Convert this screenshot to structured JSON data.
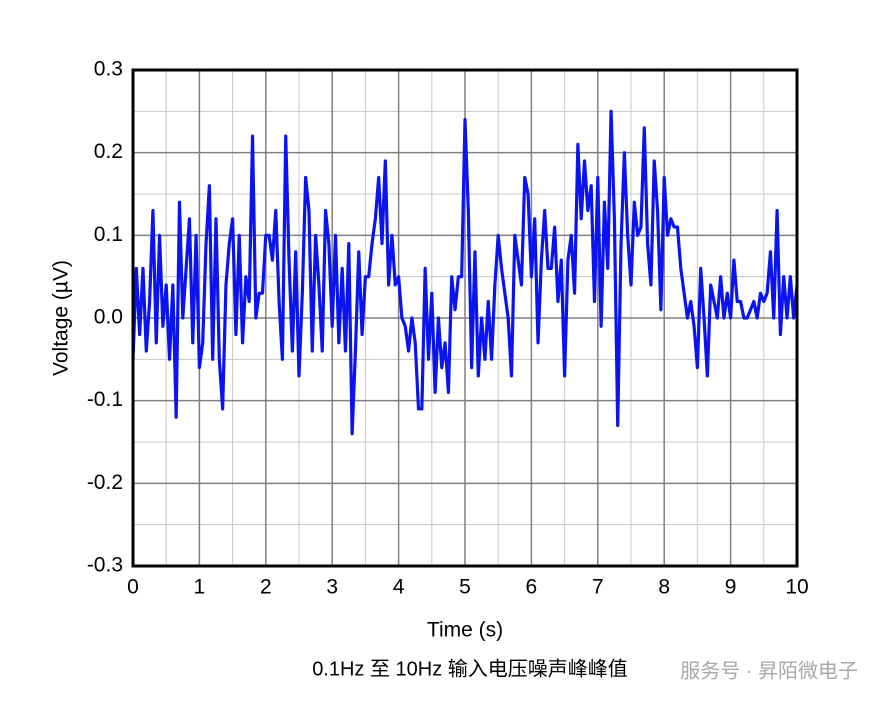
{
  "chart_data": {
    "type": "line",
    "caption": "0.1Hz 至 10Hz 输入电压噪声峰峰值",
    "watermark": "服务号 · 昇陌微电子",
    "x_label": "Time (s)",
    "y_label": "Voltage (µV)",
    "xlim": [
      0,
      10
    ],
    "ylim": [
      -0.3,
      0.3
    ],
    "xticks": [
      0,
      1,
      2,
      3,
      4,
      5,
      6,
      7,
      8,
      9,
      10
    ],
    "yticks": [
      -0.3,
      -0.2,
      -0.1,
      {
        "value": 0,
        "label": "0.0"
      },
      0.1,
      0.2,
      0.3
    ],
    "grid": true,
    "minor_grid": true,
    "x": [
      0,
      0.05,
      0.1,
      0.15,
      0.2,
      0.25,
      0.3,
      0.35,
      0.4,
      0.45,
      0.5,
      0.55,
      0.6,
      0.65,
      0.7,
      0.75,
      0.8,
      0.85,
      0.9,
      0.95,
      1,
      1.05,
      1.1,
      1.15,
      1.2,
      1.25,
      1.3,
      1.35,
      1.4,
      1.45,
      1.5,
      1.55,
      1.6,
      1.65,
      1.7,
      1.75,
      1.8,
      1.85,
      1.9,
      1.95,
      2,
      2.05,
      2.1,
      2.15,
      2.2,
      2.25,
      2.3,
      2.35,
      2.4,
      2.45,
      2.5,
      2.55,
      2.6,
      2.65,
      2.7,
      2.75,
      2.8,
      2.85,
      2.9,
      2.95,
      3,
      3.05,
      3.1,
      3.15,
      3.2,
      3.25,
      3.3,
      3.35,
      3.4,
      3.45,
      3.5,
      3.55,
      3.6,
      3.65,
      3.7,
      3.75,
      3.8,
      3.85,
      3.9,
      3.95,
      4,
      4.05,
      4.1,
      4.15,
      4.2,
      4.25,
      4.3,
      4.35,
      4.4,
      4.45,
      4.5,
      4.55,
      4.6,
      4.65,
      4.7,
      4.75,
      4.8,
      4.85,
      4.9,
      4.95,
      5,
      5.05,
      5.1,
      5.15,
      5.2,
      5.25,
      5.3,
      5.35,
      5.4,
      5.45,
      5.5,
      5.55,
      5.6,
      5.65,
      5.7,
      5.75,
      5.8,
      5.85,
      5.9,
      5.95,
      6,
      6.05,
      6.1,
      6.15,
      6.2,
      6.25,
      6.3,
      6.35,
      6.4,
      6.45,
      6.5,
      6.55,
      6.6,
      6.65,
      6.7,
      6.75,
      6.8,
      6.85,
      6.9,
      6.95,
      7,
      7.05,
      7.1,
      7.15,
      7.2,
      7.25,
      7.3,
      7.35,
      7.4,
      7.45,
      7.5,
      7.55,
      7.6,
      7.65,
      7.7,
      7.75,
      7.8,
      7.85,
      7.9,
      7.95,
      8,
      8.05,
      8.1,
      8.15,
      8.2,
      8.25,
      8.3,
      8.35,
      8.4,
      8.45,
      8.5,
      8.55,
      8.6,
      8.65,
      8.7,
      8.75,
      8.8,
      8.85,
      8.9,
      8.95,
      9,
      9.05,
      9.1,
      9.15,
      9.2,
      9.25,
      9.3,
      9.35,
      9.4,
      9.45,
      9.5,
      9.55,
      9.6,
      9.65,
      9.7,
      9.75,
      9.8,
      9.85,
      9.9,
      9.95,
      10
    ],
    "series": [
      {
        "color": "#0a14f0",
        "values": [
          -0.05,
          0.06,
          -0.02,
          0.06,
          -0.04,
          0.02,
          0.13,
          -0.03,
          0.1,
          -0.01,
          0.04,
          -0.05,
          0.04,
          -0.12,
          0.14,
          0.0,
          0.06,
          0.12,
          -0.03,
          0.1,
          -0.06,
          -0.03,
          0.09,
          0.16,
          -0.05,
          0.12,
          -0.05,
          -0.11,
          0.04,
          0.09,
          0.12,
          -0.02,
          0.1,
          -0.03,
          0.05,
          0.02,
          0.22,
          0.0,
          0.03,
          0.03,
          0.1,
          0.1,
          0.07,
          0.13,
          0.02,
          -0.05,
          0.22,
          0.07,
          -0.04,
          0.08,
          -0.07,
          0.03,
          0.17,
          0.13,
          -0.04,
          0.1,
          0.04,
          -0.04,
          0.13,
          0.09,
          -0.01,
          0.1,
          -0.03,
          0.06,
          -0.04,
          0.09,
          -0.14,
          -0.04,
          0.08,
          -0.02,
          0.05,
          0.05,
          0.09,
          0.12,
          0.17,
          0.09,
          0.19,
          0.04,
          0.1,
          0.04,
          0.05,
          0.0,
          -0.01,
          -0.04,
          0.0,
          -0.03,
          -0.11,
          -0.11,
          0.06,
          -0.05,
          0.03,
          -0.09,
          0.0,
          -0.06,
          -0.03,
          -0.09,
          0.05,
          0.01,
          0.05,
          0.05,
          0.24,
          0.13,
          -0.06,
          0.08,
          -0.07,
          0.0,
          -0.05,
          0.02,
          -0.05,
          0.04,
          0.1,
          0.06,
          0.03,
          0.0,
          -0.07,
          0.1,
          0.07,
          0.04,
          0.17,
          0.15,
          0.05,
          0.12,
          -0.03,
          0.07,
          0.13,
          0.06,
          0.06,
          0.11,
          0.02,
          0.07,
          -0.07,
          0.07,
          0.1,
          0.03,
          0.21,
          0.12,
          0.19,
          0.13,
          0.16,
          0.02,
          0.17,
          -0.01,
          0.14,
          0.06,
          0.25,
          0.12,
          -0.13,
          0.09,
          0.2,
          0.1,
          0.04,
          0.14,
          0.1,
          0.11,
          0.23,
          0.09,
          0.04,
          0.19,
          0.13,
          0.01,
          0.17,
          0.1,
          0.12,
          0.11,
          0.11,
          0.06,
          0.03,
          0.0,
          0.02,
          -0.01,
          -0.06,
          0.06,
          0.0,
          -0.07,
          0.04,
          0.02,
          0.0,
          0.05,
          0.0,
          0.03,
          0.0,
          0.07,
          0.02,
          0.02,
          0.0,
          0.0,
          0.01,
          0.02,
          0.0,
          0.03,
          0.02,
          0.03,
          0.08,
          0.0,
          0.13,
          -0.02,
          0.05,
          0.0,
          0.05,
          0.0,
          0.04
        ]
      }
    ]
  }
}
